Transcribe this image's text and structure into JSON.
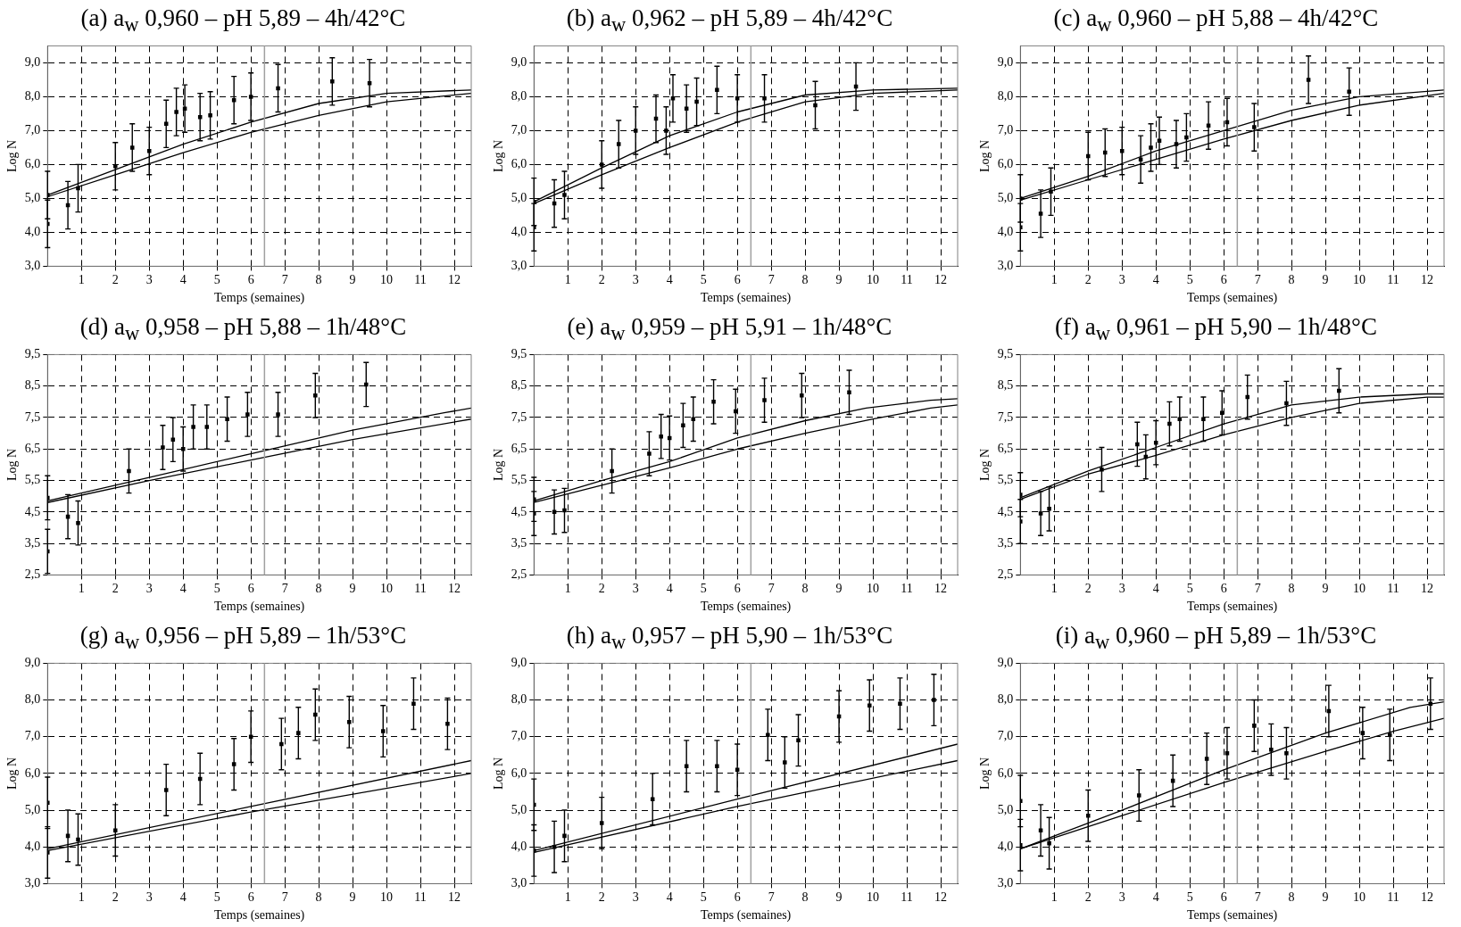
{
  "chart_data": [
    {
      "type": "scatter",
      "title": "(a) a$_{w}$ 0,960 – pH 5,89 – 4h/42°C",
      "xlabel": "Temps (semaines)",
      "ylabel": "Log N",
      "xlim": [
        0,
        12.5
      ],
      "xticks": [
        1,
        2,
        3,
        4,
        5,
        6,
        7,
        8,
        9,
        10,
        11,
        12
      ],
      "ylim": [
        3,
        9.5
      ],
      "yticks": [
        {
          "value": 3,
          "label": "3,0"
        },
        {
          "value": 4,
          "label": "4,0"
        },
        {
          "value": 5,
          "label": "5,0"
        },
        {
          "value": 6,
          "label": "6,0"
        },
        {
          "value": 7,
          "label": "7,0"
        },
        {
          "value": 8,
          "label": "8,0"
        },
        {
          "value": 9,
          "label": "9,0"
        }
      ],
      "grid": true,
      "ref_lines": [
        {
          "axis": "x",
          "value": 6.4,
          "color": "#a0a0a0"
        }
      ],
      "series": [
        {
          "type": "scatter",
          "color": "#000000",
          "marker": "square",
          "x": [
            0,
            0,
            0.6,
            0.9,
            2.0,
            2.5,
            3.0,
            3.5,
            3.8,
            4.05,
            4.5,
            4.8,
            5.5,
            6.0,
            6.8,
            8.4,
            9.5
          ],
          "values": [
            4.25,
            5.1,
            4.8,
            5.3,
            5.95,
            6.5,
            6.4,
            7.2,
            7.55,
            7.65,
            7.4,
            7.45,
            7.9,
            8.0,
            8.25,
            8.45,
            8.4
          ],
          "errors": [
            0.7,
            0.7,
            0.7,
            0.7,
            0.7,
            0.7,
            0.7,
            0.7,
            0.7,
            0.7,
            0.7,
            0.7,
            0.7,
            0.7,
            0.7,
            0.7,
            0.7
          ]
        },
        {
          "type": "line",
          "color": "#000000",
          "marker": "none",
          "x": [
            0,
            2,
            4,
            6,
            8,
            10,
            12.5
          ],
          "values": [
            5.1,
            5.85,
            6.6,
            7.25,
            7.8,
            8.1,
            8.2
          ]
        },
        {
          "type": "line",
          "color": "#000000",
          "marker": "none",
          "x": [
            0,
            2,
            4,
            6,
            8,
            10,
            12.5
          ],
          "values": [
            5.05,
            5.7,
            6.35,
            6.95,
            7.45,
            7.85,
            8.1
          ]
        }
      ]
    },
    {
      "type": "scatter",
      "title": "(b) a$_{w}$ 0,962 – pH 5,89 – 4h/42°C",
      "xlabel": "Temps (semaines)",
      "ylabel": "Log N",
      "xlim": [
        0,
        12.5
      ],
      "xticks": [
        1,
        2,
        3,
        4,
        5,
        6,
        7,
        8,
        9,
        10,
        11,
        12
      ],
      "ylim": [
        3,
        9.5
      ],
      "yticks": [
        {
          "value": 3,
          "label": "3,0"
        },
        {
          "value": 4,
          "label": "4,0"
        },
        {
          "value": 5,
          "label": "5,0"
        },
        {
          "value": 6,
          "label": "6,0"
        },
        {
          "value": 7,
          "label": "7,0"
        },
        {
          "value": 8,
          "label": "8,0"
        },
        {
          "value": 9,
          "label": "9,0"
        }
      ],
      "grid": true,
      "ref_lines": [
        {
          "axis": "x",
          "value": 6.4,
          "color": "#a0a0a0"
        }
      ],
      "series": [
        {
          "type": "scatter",
          "color": "#000000",
          "marker": "square",
          "x": [
            0,
            0,
            0.6,
            0.9,
            2.0,
            2.5,
            3.0,
            3.6,
            3.9,
            4.1,
            4.5,
            4.8,
            5.4,
            6.0,
            6.8,
            8.3,
            9.5
          ],
          "values": [
            4.15,
            4.9,
            4.85,
            5.1,
            6.0,
            6.6,
            7.0,
            7.35,
            7.0,
            7.95,
            7.65,
            7.85,
            8.2,
            7.95,
            7.95,
            7.75,
            8.3
          ],
          "errors": [
            0.7,
            0.7,
            0.7,
            0.7,
            0.7,
            0.7,
            0.7,
            0.7,
            0.7,
            0.7,
            0.7,
            0.7,
            0.7,
            0.7,
            0.7,
            0.7,
            0.7
          ]
        },
        {
          "type": "line",
          "color": "#000000",
          "marker": "none",
          "x": [
            0,
            2,
            4,
            6,
            8,
            10,
            12.5
          ],
          "values": [
            4.9,
            5.9,
            6.85,
            7.55,
            8.05,
            8.2,
            8.25
          ]
        },
        {
          "type": "line",
          "color": "#000000",
          "marker": "none",
          "x": [
            0,
            2,
            4,
            6,
            8,
            10,
            12.5
          ],
          "values": [
            4.85,
            5.7,
            6.5,
            7.25,
            7.85,
            8.1,
            8.2
          ]
        }
      ]
    },
    {
      "type": "scatter",
      "title": "(c) a$_{w}$ 0,960 – pH 5,88 – 4h/42°C",
      "xlabel": "Temps (semaines)",
      "ylabel": "Log N",
      "xlim": [
        0,
        12.5
      ],
      "xticks": [
        1,
        2,
        3,
        4,
        5,
        6,
        7,
        8,
        9,
        10,
        11,
        12
      ],
      "ylim": [
        3,
        9.5
      ],
      "yticks": [
        {
          "value": 3,
          "label": "3,0"
        },
        {
          "value": 4,
          "label": "4,0"
        },
        {
          "value": 5,
          "label": "5,0"
        },
        {
          "value": 6,
          "label": "6,0"
        },
        {
          "value": 7,
          "label": "7,0"
        },
        {
          "value": 8,
          "label": "8,0"
        },
        {
          "value": 9,
          "label": "9,0"
        }
      ],
      "grid": true,
      "ref_lines": [
        {
          "axis": "x",
          "value": 6.4,
          "color": "#a0a0a0"
        }
      ],
      "series": [
        {
          "type": "scatter",
          "color": "#000000",
          "marker": "square",
          "x": [
            0,
            0,
            0.6,
            0.9,
            2.0,
            2.5,
            3.0,
            3.55,
            3.85,
            4.1,
            4.6,
            4.9,
            5.55,
            6.1,
            6.9,
            8.5,
            9.7
          ],
          "values": [
            4.15,
            5.0,
            4.55,
            5.2,
            6.25,
            6.35,
            6.4,
            6.15,
            6.5,
            6.7,
            6.6,
            6.8,
            7.15,
            7.25,
            7.1,
            8.5,
            8.15
          ],
          "errors": [
            0.7,
            0.7,
            0.7,
            0.7,
            0.7,
            0.7,
            0.7,
            0.7,
            0.7,
            0.7,
            0.7,
            0.7,
            0.7,
            0.7,
            0.7,
            0.7,
            0.7
          ]
        },
        {
          "type": "line",
          "color": "#000000",
          "marker": "none",
          "x": [
            0,
            2,
            4,
            6,
            8,
            10,
            12.5
          ],
          "values": [
            5.0,
            5.65,
            6.4,
            7.0,
            7.6,
            8.0,
            8.2
          ]
        },
        {
          "type": "line",
          "color": "#000000",
          "marker": "none",
          "x": [
            0,
            2,
            4,
            6,
            8,
            10,
            12.5
          ],
          "values": [
            4.95,
            5.55,
            6.15,
            6.75,
            7.3,
            7.75,
            8.1
          ]
        }
      ]
    },
    {
      "type": "scatter",
      "title": "(d) a$_{w}$ 0,958 – pH 5,88 – 1h/48°C",
      "xlabel": "Temps (semaines)",
      "ylabel": "Log N",
      "xlim": [
        0,
        12.5
      ],
      "xticks": [
        1,
        2,
        3,
        4,
        5,
        6,
        7,
        8,
        9,
        10,
        11,
        12
      ],
      "ylim": [
        2.5,
        9.5
      ],
      "yticks": [
        {
          "value": 2.5,
          "label": "2,5"
        },
        {
          "value": 3.5,
          "label": "3,5"
        },
        {
          "value": 4.5,
          "label": "4,5"
        },
        {
          "value": 5.5,
          "label": "5,5"
        },
        {
          "value": 6.5,
          "label": "6,5"
        },
        {
          "value": 7.5,
          "label": "7,5"
        },
        {
          "value": 8.5,
          "label": "8,5"
        },
        {
          "value": 9.5,
          "label": "9,5"
        }
      ],
      "grid": true,
      "ref_lines": [
        {
          "axis": "x",
          "value": 6.4,
          "color": "#a0a0a0"
        }
      ],
      "series": [
        {
          "type": "scatter",
          "color": "#000000",
          "marker": "square",
          "x": [
            0,
            0,
            0.6,
            0.9,
            2.4,
            3.4,
            3.7,
            4.0,
            4.3,
            4.7,
            5.3,
            5.9,
            6.8,
            7.9,
            9.4
          ],
          "values": [
            3.25,
            4.95,
            4.35,
            4.15,
            5.8,
            6.55,
            6.8,
            6.5,
            7.2,
            7.2,
            7.45,
            7.6,
            7.6,
            8.2,
            8.55
          ],
          "errors": [
            0.7,
            0.7,
            0.7,
            0.7,
            0.7,
            0.7,
            0.7,
            0.7,
            0.7,
            0.7,
            0.7,
            0.7,
            0.7,
            0.7,
            0.7
          ]
        },
        {
          "type": "line",
          "color": "#000000",
          "marker": "none",
          "x": [
            0,
            3,
            6,
            9,
            11.7,
            12.5
          ],
          "values": [
            4.85,
            5.6,
            6.35,
            7.1,
            7.65,
            7.8
          ]
        },
        {
          "type": "line",
          "color": "#000000",
          "marker": "none",
          "x": [
            0,
            3,
            6,
            9,
            12.5
          ],
          "values": [
            4.8,
            5.5,
            6.15,
            6.8,
            7.45
          ]
        }
      ]
    },
    {
      "type": "scatter",
      "title": "(e) a$_{w}$ 0,959 – pH 5,91 – 1h/48°C",
      "xlabel": "Temps (semaines)",
      "ylabel": "Log N",
      "xlim": [
        0,
        12.5
      ],
      "xticks": [
        1,
        2,
        3,
        4,
        5,
        6,
        7,
        8,
        9,
        10,
        11,
        12
      ],
      "ylim": [
        2.5,
        9.5
      ],
      "yticks": [
        {
          "value": 2.5,
          "label": "2,5"
        },
        {
          "value": 3.5,
          "label": "3,5"
        },
        {
          "value": 4.5,
          "label": "4,5"
        },
        {
          "value": 5.5,
          "label": "5,5"
        },
        {
          "value": 6.5,
          "label": "6,5"
        },
        {
          "value": 7.5,
          "label": "7,5"
        },
        {
          "value": 8.5,
          "label": "8,5"
        },
        {
          "value": 9.5,
          "label": "9,5"
        }
      ],
      "grid": true,
      "ref_lines": [
        {
          "axis": "x",
          "value": 6.4,
          "color": "#a0a0a0"
        }
      ],
      "series": [
        {
          "type": "scatter",
          "color": "#000000",
          "marker": "square",
          "x": [
            0,
            0,
            0.6,
            0.9,
            2.3,
            3.4,
            3.75,
            4.0,
            4.4,
            4.7,
            5.3,
            5.95,
            6.8,
            7.9,
            9.3
          ],
          "values": [
            4.45,
            4.9,
            4.5,
            4.55,
            5.8,
            6.35,
            6.9,
            6.85,
            7.25,
            7.45,
            8.0,
            7.7,
            8.05,
            8.2,
            8.3
          ],
          "errors": [
            0.7,
            0.7,
            0.7,
            0.7,
            0.7,
            0.7,
            0.7,
            0.7,
            0.7,
            0.7,
            0.7,
            0.7,
            0.7,
            0.7,
            0.7
          ]
        },
        {
          "type": "line",
          "color": "#000000",
          "marker": "none",
          "x": [
            0,
            2,
            4,
            6,
            8,
            9.8,
            11.7,
            12.5
          ],
          "values": [
            4.85,
            5.5,
            6.1,
            6.85,
            7.4,
            7.8,
            8.05,
            8.1
          ]
        },
        {
          "type": "line",
          "color": "#000000",
          "marker": "none",
          "x": [
            0,
            2,
            4,
            6,
            8,
            10,
            11.7,
            12.5
          ],
          "values": [
            4.8,
            5.35,
            5.9,
            6.5,
            7.0,
            7.45,
            7.8,
            7.9
          ]
        }
      ]
    },
    {
      "type": "scatter",
      "title": "(f) a$_{w}$ 0,961 – pH 5,90 – 1h/48°C",
      "xlabel": "Temps (semaines)",
      "ylabel": "Log N",
      "xlim": [
        0,
        12.5
      ],
      "xticks": [
        1,
        2,
        3,
        4,
        5,
        6,
        7,
        8,
        9,
        10,
        11,
        12
      ],
      "ylim": [
        2.5,
        9.5
      ],
      "yticks": [
        {
          "value": 2.5,
          "label": "2,5"
        },
        {
          "value": 3.5,
          "label": "3,5"
        },
        {
          "value": 4.5,
          "label": "4,5"
        },
        {
          "value": 5.5,
          "label": "5,5"
        },
        {
          "value": 6.5,
          "label": "6,5"
        },
        {
          "value": 7.5,
          "label": "7,5"
        },
        {
          "value": 8.5,
          "label": "8,5"
        },
        {
          "value": 9.5,
          "label": "9,5"
        }
      ],
      "grid": true,
      "ref_lines": [
        {
          "axis": "x",
          "value": 6.4,
          "color": "#a0a0a0"
        }
      ],
      "series": [
        {
          "type": "scatter",
          "color": "#000000",
          "marker": "square",
          "x": [
            0,
            0,
            0.6,
            0.85,
            2.4,
            3.45,
            3.7,
            4.0,
            4.4,
            4.7,
            5.4,
            5.95,
            6.7,
            7.85,
            9.4
          ],
          "values": [
            4.2,
            5.05,
            4.45,
            4.6,
            5.85,
            6.65,
            6.25,
            6.7,
            7.3,
            7.45,
            7.45,
            7.65,
            8.15,
            7.95,
            8.35
          ],
          "errors": [
            0.7,
            0.7,
            0.7,
            0.7,
            0.7,
            0.7,
            0.7,
            0.7,
            0.7,
            0.7,
            0.7,
            0.7,
            0.7,
            0.7,
            0.7
          ]
        },
        {
          "type": "line",
          "color": "#000000",
          "marker": "none",
          "x": [
            0,
            2,
            4,
            6,
            8,
            10,
            12,
            12.5
          ],
          "values": [
            4.95,
            5.8,
            6.55,
            7.3,
            7.9,
            8.15,
            8.25,
            8.25
          ]
        },
        {
          "type": "line",
          "color": "#000000",
          "marker": "none",
          "x": [
            0,
            2,
            4,
            6,
            8,
            10,
            12,
            12.5
          ],
          "values": [
            4.9,
            5.7,
            6.3,
            6.95,
            7.5,
            7.95,
            8.15,
            8.15
          ]
        }
      ]
    },
    {
      "type": "scatter",
      "title": "(g) a$_{w}$ 0,956 – pH 5,89 – 1h/53°C",
      "xlabel": "Temps (semaines)",
      "ylabel": "Log N",
      "xlim": [
        0,
        12.5
      ],
      "xticks": [
        1,
        2,
        3,
        4,
        5,
        6,
        7,
        8,
        9,
        10,
        11,
        12
      ],
      "ylim": [
        3,
        9
      ],
      "yticks": [
        {
          "value": 3,
          "label": "3,0"
        },
        {
          "value": 4,
          "label": "4,0"
        },
        {
          "value": 5,
          "label": "5,0"
        },
        {
          "value": 6,
          "label": "6,0"
        },
        {
          "value": 7,
          "label": "7,0"
        },
        {
          "value": 8,
          "label": "8,0"
        },
        {
          "value": 9,
          "label": "9,0"
        }
      ],
      "grid": true,
      "ref_lines": [
        {
          "axis": "x",
          "value": 6.4,
          "color": "#a0a0a0"
        }
      ],
      "series": [
        {
          "type": "scatter",
          "color": "#000000",
          "marker": "square",
          "x": [
            0,
            0,
            0.6,
            0.9,
            2.0,
            3.5,
            4.5,
            5.5,
            6.0,
            6.9,
            7.4,
            7.9,
            8.9,
            9.9,
            10.8,
            11.8
          ],
          "values": [
            3.85,
            5.2,
            4.3,
            4.2,
            4.45,
            5.55,
            5.85,
            6.25,
            7.0,
            6.8,
            7.1,
            7.6,
            7.4,
            7.15,
            7.9,
            7.35
          ],
          "errors": [
            0.7,
            0.7,
            0.7,
            0.7,
            0.7,
            0.7,
            0.7,
            0.7,
            0.7,
            0.7,
            0.7,
            0.7,
            0.7,
            0.7,
            0.7,
            0.7
          ]
        },
        {
          "type": "line",
          "color": "#000000",
          "marker": "none",
          "x": [
            0,
            6,
            12.5
          ],
          "values": [
            3.95,
            5.1,
            6.35
          ]
        },
        {
          "type": "line",
          "color": "#000000",
          "marker": "none",
          "x": [
            0,
            6,
            12.5
          ],
          "values": [
            3.9,
            4.95,
            6.0
          ]
        }
      ]
    },
    {
      "type": "scatter",
      "title": "(h) a$_{w}$ 0,957 – pH 5,90 – 1h/53°C",
      "xlabel": "Temps (semaines)",
      "ylabel": "Log N",
      "xlim": [
        0,
        12.5
      ],
      "xticks": [
        1,
        2,
        3,
        4,
        5,
        6,
        7,
        8,
        9,
        10,
        11,
        12
      ],
      "ylim": [
        3,
        9
      ],
      "yticks": [
        {
          "value": 3,
          "label": "3,0"
        },
        {
          "value": 4,
          "label": "4,0"
        },
        {
          "value": 5,
          "label": "5,0"
        },
        {
          "value": 6,
          "label": "6,0"
        },
        {
          "value": 7,
          "label": "7,0"
        },
        {
          "value": 8,
          "label": "8,0"
        },
        {
          "value": 9,
          "label": "9,0"
        }
      ],
      "grid": true,
      "ref_lines": [
        {
          "axis": "x",
          "value": 6.4,
          "color": "#a0a0a0"
        }
      ],
      "series": [
        {
          "type": "scatter",
          "color": "#000000",
          "marker": "square",
          "x": [
            0,
            0,
            0.6,
            0.9,
            2.0,
            3.5,
            4.5,
            5.4,
            6.0,
            6.9,
            7.4,
            7.8,
            9.0,
            9.9,
            10.8,
            11.8
          ],
          "values": [
            3.9,
            5.15,
            4.0,
            4.3,
            4.65,
            5.3,
            6.2,
            6.2,
            6.1,
            7.05,
            6.3,
            6.9,
            7.55,
            7.85,
            7.9,
            8.0
          ],
          "errors": [
            0.7,
            0.7,
            0.7,
            0.7,
            0.7,
            0.7,
            0.7,
            0.7,
            0.7,
            0.7,
            0.7,
            0.7,
            0.7,
            0.7,
            0.7,
            0.7
          ]
        },
        {
          "type": "line",
          "color": "#000000",
          "marker": "none",
          "x": [
            0,
            6,
            12.5
          ],
          "values": [
            3.9,
            5.3,
            6.8
          ]
        },
        {
          "type": "line",
          "color": "#000000",
          "marker": "none",
          "x": [
            0,
            6,
            12.5
          ],
          "values": [
            3.85,
            5.1,
            6.35
          ]
        }
      ]
    },
    {
      "type": "scatter",
      "title": "(i) a$_{w}$ 0,960 – pH 5,89 – 1h/53°C",
      "xlabel": "Temps (semaines)",
      "ylabel": "Log N",
      "xlim": [
        0,
        12.5
      ],
      "xticks": [
        1,
        2,
        3,
        4,
        5,
        6,
        7,
        8,
        9,
        10,
        11,
        12
      ],
      "ylim": [
        3,
        9
      ],
      "yticks": [
        {
          "value": 3,
          "label": "3,0"
        },
        {
          "value": 4,
          "label": "4,0"
        },
        {
          "value": 5,
          "label": "5,0"
        },
        {
          "value": 6,
          "label": "6,0"
        },
        {
          "value": 7,
          "label": "7,0"
        },
        {
          "value": 8,
          "label": "8,0"
        },
        {
          "value": 9,
          "label": "9,0"
        }
      ],
      "grid": true,
      "ref_lines": [
        {
          "axis": "x",
          "value": 6.4,
          "color": "#a0a0a0"
        }
      ],
      "series": [
        {
          "type": "scatter",
          "color": "#000000",
          "marker": "square",
          "x": [
            0,
            0,
            0.6,
            0.85,
            2.0,
            3.5,
            4.5,
            5.5,
            6.1,
            6.9,
            7.4,
            7.85,
            9.1,
            10.1,
            10.9,
            12.1
          ],
          "values": [
            4.05,
            5.25,
            4.45,
            4.1,
            4.85,
            5.4,
            5.8,
            6.4,
            6.55,
            7.3,
            6.65,
            6.55,
            7.7,
            7.1,
            7.05,
            7.9
          ],
          "errors": [
            0.7,
            0.7,
            0.7,
            0.7,
            0.7,
            0.7,
            0.7,
            0.7,
            0.7,
            0.7,
            0.7,
            0.7,
            0.7,
            0.7,
            0.7,
            0.7
          ]
        },
        {
          "type": "line",
          "color": "#000000",
          "marker": "none",
          "x": [
            0,
            3,
            6,
            9,
            11.5,
            12.5
          ],
          "values": [
            3.95,
            5.0,
            6.1,
            7.1,
            7.8,
            7.95
          ]
        },
        {
          "type": "line",
          "color": "#000000",
          "marker": "none",
          "x": [
            0,
            3,
            6,
            9,
            11,
            12.5
          ],
          "values": [
            3.95,
            4.85,
            5.75,
            6.6,
            7.15,
            7.5
          ]
        }
      ]
    }
  ]
}
